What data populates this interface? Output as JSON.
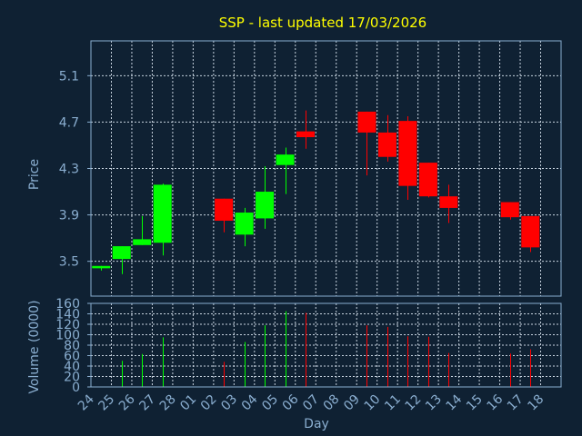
{
  "title": "SSP - last updated 17/03/2026",
  "colors": {
    "background": "#0f2133",
    "title": "#ffff00",
    "axis_text": "#8aaed0",
    "frame": "#8aaed0",
    "grid": "#c8d4e0",
    "up": "#00ff00",
    "down": "#ff0000"
  },
  "chart_data": [
    {
      "type": "candlestick",
      "ylabel": "Price",
      "ylim": [
        3.2,
        5.4
      ],
      "yticks": [
        "5.1",
        "4.7",
        "4.3",
        "3.9",
        "3.5"
      ],
      "grid": true,
      "x": [
        "24",
        "25",
        "26",
        "27",
        "28",
        "01",
        "02",
        "03",
        "04",
        "05",
        "06",
        "07",
        "08",
        "09",
        "10",
        "11",
        "12",
        "13",
        "14",
        "15",
        "16",
        "17",
        "18"
      ],
      "candles": [
        {
          "x": "24",
          "open": 3.44,
          "high": 3.46,
          "low": 3.42,
          "close": 3.46
        },
        {
          "x": "25",
          "open": 3.52,
          "high": 3.63,
          "low": 3.39,
          "close": 3.63
        },
        {
          "x": "26",
          "open": 3.64,
          "high": 3.89,
          "low": 3.64,
          "close": 3.69
        },
        {
          "x": "27",
          "open": 3.66,
          "high": 4.17,
          "low": 3.55,
          "close": 4.16
        },
        {
          "x": "02",
          "open": 4.04,
          "high": 4.04,
          "low": 3.75,
          "close": 3.85
        },
        {
          "x": "03",
          "open": 3.73,
          "high": 3.96,
          "low": 3.63,
          "close": 3.92
        },
        {
          "x": "04",
          "open": 3.87,
          "high": 4.32,
          "low": 3.78,
          "close": 4.1
        },
        {
          "x": "05",
          "open": 4.33,
          "high": 4.48,
          "low": 4.08,
          "close": 4.42
        },
        {
          "x": "06",
          "open": 4.62,
          "high": 4.8,
          "low": 4.47,
          "close": 4.57
        },
        {
          "x": "09",
          "open": 4.79,
          "high": 4.79,
          "low": 4.24,
          "close": 4.61
        },
        {
          "x": "10",
          "open": 4.61,
          "high": 4.76,
          "low": 4.36,
          "close": 4.4
        },
        {
          "x": "11",
          "open": 4.71,
          "high": 4.75,
          "low": 4.03,
          "close": 4.15
        },
        {
          "x": "12",
          "open": 4.35,
          "high": 4.35,
          "low": 4.05,
          "close": 4.06
        },
        {
          "x": "13",
          "open": 4.06,
          "high": 4.16,
          "low": 3.83,
          "close": 3.96
        },
        {
          "x": "16",
          "open": 4.01,
          "high": 4.01,
          "low": 3.86,
          "close": 3.88
        },
        {
          "x": "17",
          "open": 3.89,
          "high": 3.89,
          "low": 3.58,
          "close": 3.62
        }
      ]
    },
    {
      "type": "bar",
      "xlabel": "Day",
      "ylabel": "Volume (0000)",
      "ylim": [
        0,
        160
      ],
      "yticks": [
        "160",
        "140",
        "120",
        "100",
        "80",
        "60",
        "40",
        "20",
        "0"
      ],
      "grid": true,
      "bars": [
        {
          "x": "25",
          "value": 50,
          "direction": "up"
        },
        {
          "x": "26",
          "value": 63,
          "direction": "up"
        },
        {
          "x": "27",
          "value": 95,
          "direction": "up"
        },
        {
          "x": "02",
          "value": 48,
          "direction": "down"
        },
        {
          "x": "03",
          "value": 86,
          "direction": "up"
        },
        {
          "x": "04",
          "value": 118,
          "direction": "up"
        },
        {
          "x": "05",
          "value": 145,
          "direction": "up"
        },
        {
          "x": "06",
          "value": 142,
          "direction": "down"
        },
        {
          "x": "09",
          "value": 118,
          "direction": "down"
        },
        {
          "x": "10",
          "value": 115,
          "direction": "down"
        },
        {
          "x": "11",
          "value": 97,
          "direction": "down"
        },
        {
          "x": "12",
          "value": 96,
          "direction": "down"
        },
        {
          "x": "13",
          "value": 65,
          "direction": "down"
        },
        {
          "x": "16",
          "value": 64,
          "direction": "down"
        },
        {
          "x": "17",
          "value": 72,
          "direction": "down"
        }
      ]
    }
  ]
}
